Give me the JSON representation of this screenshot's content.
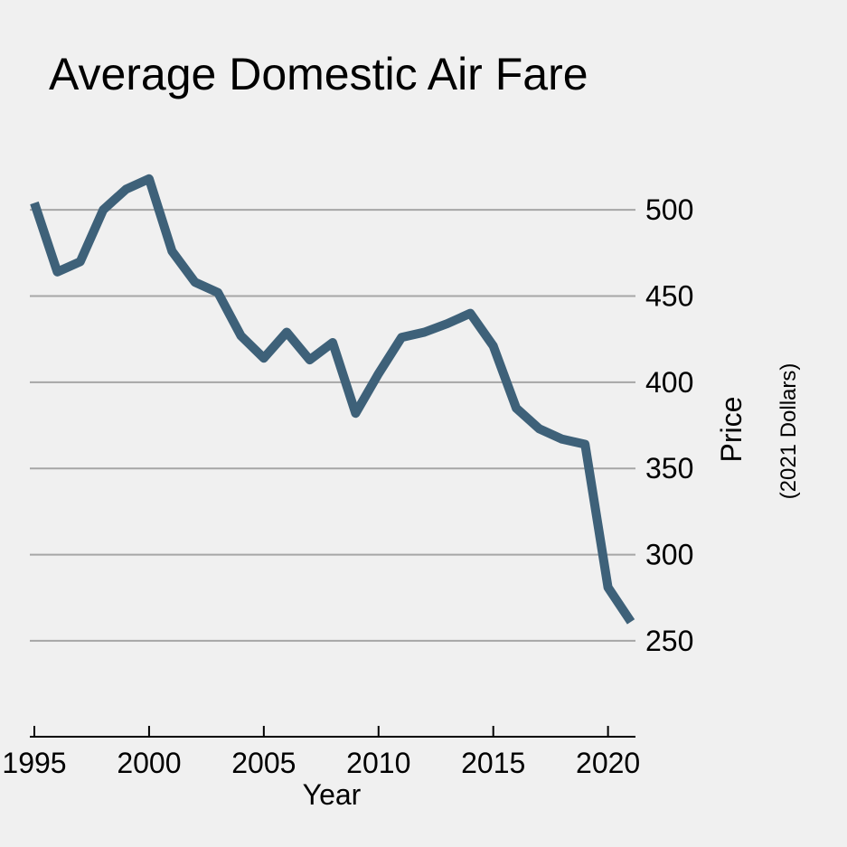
{
  "chart_data": {
    "type": "line",
    "title": "Average Domestic Air Fare",
    "xlabel": "Year",
    "ylabel": "Price",
    "ylabel_sub": "(2021 Dollars)",
    "xlim": [
      1995,
      2021
    ],
    "ylim": [
      197,
      520
    ],
    "x_ticks": [
      "1995",
      "2000",
      "2005",
      "2010",
      "2015",
      "2020"
    ],
    "y_ticks": [
      "250",
      "300",
      "350",
      "400",
      "450",
      "500"
    ],
    "grid": "horizontal",
    "y_axis_side": "right",
    "line_color": "#3e6179",
    "gridline_color": "#a6a6a6",
    "background_color": "#f0f0f0",
    "series": [
      {
        "x": [
          1995,
          1996,
          1997,
          1998,
          1999,
          2000,
          2001,
          2002,
          2003,
          2004,
          2005,
          2006,
          2007,
          2008,
          2009,
          2010,
          2011,
          2012,
          2013,
          2014,
          2015,
          2016,
          2017,
          2018,
          2019,
          2020,
          2021
        ],
        "values": [
          504,
          464,
          470,
          500,
          512,
          518,
          476,
          458,
          452,
          427,
          414,
          429,
          413,
          423,
          382,
          405,
          426,
          429,
          434,
          440,
          421,
          385,
          373,
          367,
          364,
          281,
          261
        ]
      }
    ]
  }
}
